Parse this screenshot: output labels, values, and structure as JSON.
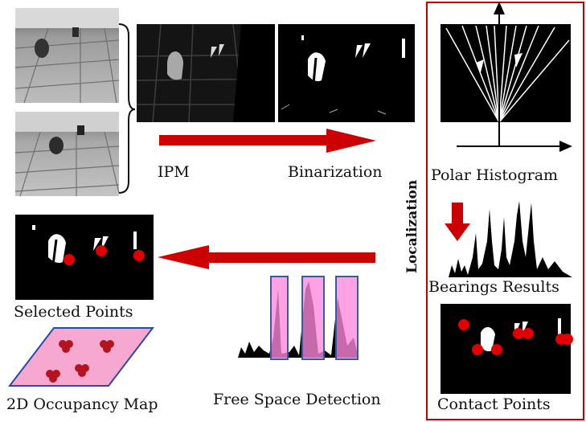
{
  "stages": {
    "ipm": "IPM",
    "binarization": "Binarization",
    "polar_histogram": "Polar Histogram",
    "bearings_results": "Bearings Results",
    "contact_points": "Contact Points",
    "free_space_detection": "Free Space Detection",
    "selected_points": "Selected Points",
    "occupancy_map": "2D Occupancy Map"
  },
  "localization_label": "Localization",
  "colors": {
    "arrow_red": "#cc0000",
    "box_red": "#c00000",
    "point_red": "#e00000",
    "bar_fill": "#ff88dd",
    "bar_stroke": "#3a5aa8",
    "map_fill": "#f7a8d0",
    "map_stroke": "#2a4aa8",
    "map_point": "#b4141e"
  }
}
